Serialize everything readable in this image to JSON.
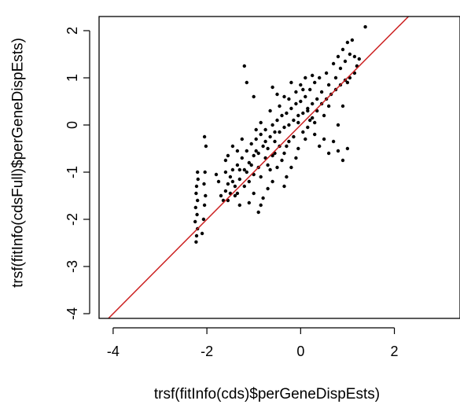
{
  "chart_data": {
    "type": "scatter",
    "title": "",
    "xlabel": "trsf(fitInfo(cds)$perGeneDispEsts)",
    "ylabel": "trsf(fitInfo(cdsFull)$perGeneDispEsts)",
    "xlim": [
      -4.3,
      3.4
    ],
    "ylim": [
      -4.1,
      2.3
    ],
    "xticks": [
      -4,
      -2,
      0,
      2
    ],
    "yticks": [
      -4,
      -3,
      -2,
      -1,
      0,
      1,
      2
    ],
    "x_tick_labels": [
      "-4",
      "-2",
      "0",
      "2"
    ],
    "y_tick_labels": [
      "-4",
      "-3",
      "-2",
      "-1",
      "0",
      "1",
      "2"
    ],
    "grid": false,
    "point_color": "#000000",
    "reference_line": {
      "type": "identity",
      "slope": 1,
      "intercept": 0,
      "color": "#cc2222"
    },
    "series": [
      {
        "values": [
          [
            -2.23,
            -2.48
          ],
          [
            -2.22,
            -2.35
          ],
          [
            -2.2,
            -2.2
          ],
          [
            -2.25,
            -2.05
          ],
          [
            -2.21,
            -1.9
          ],
          [
            -2.24,
            -1.75
          ],
          [
            -2.2,
            -1.6
          ],
          [
            -2.23,
            -1.45
          ],
          [
            -2.22,
            -1.3
          ],
          [
            -2.19,
            -1.15
          ],
          [
            -2.2,
            -1.0
          ],
          [
            -2.1,
            -2.3
          ],
          [
            -2.07,
            -2.0
          ],
          [
            -2.05,
            -1.7
          ],
          [
            -2.03,
            -1.5
          ],
          [
            -2.06,
            -1.25
          ],
          [
            -2.04,
            -1.0
          ],
          [
            -2.02,
            -0.45
          ],
          [
            -2.05,
            -0.25
          ],
          [
            -1.65,
            -1.6
          ],
          [
            -1.6,
            -1.4
          ],
          [
            -1.55,
            -1.25
          ],
          [
            -1.5,
            -1.1
          ],
          [
            -1.45,
            -0.95
          ],
          [
            -1.6,
            -1.0
          ],
          [
            -1.4,
            -1.3
          ],
          [
            -1.35,
            -0.85
          ],
          [
            -1.3,
            -1.15
          ],
          [
            -1.25,
            -0.7
          ],
          [
            -1.55,
            -0.65
          ],
          [
            -1.45,
            -0.45
          ],
          [
            -1.2,
            -0.95
          ],
          [
            -1.15,
            -0.55
          ],
          [
            -1.1,
            -0.8
          ],
          [
            -1.05,
            -0.4
          ],
          [
            -1.0,
            -0.65
          ],
          [
            -0.95,
            -0.3
          ],
          [
            -0.9,
            -0.6
          ],
          [
            -0.85,
            -0.2
          ],
          [
            -0.8,
            -0.45
          ],
          [
            -0.75,
            -0.1
          ],
          [
            -0.7,
            -0.5
          ],
          [
            -0.65,
            -0.25
          ],
          [
            -0.6,
            0.0
          ],
          [
            -0.55,
            -0.35
          ],
          [
            -0.5,
            0.1
          ],
          [
            -0.45,
            -0.15
          ],
          [
            -0.4,
            0.2
          ],
          [
            -0.35,
            -0.05
          ],
          [
            -0.3,
            0.25
          ],
          [
            -0.25,
            0.0
          ],
          [
            -0.2,
            0.35
          ],
          [
            -0.15,
            0.1
          ],
          [
            -0.1,
            0.45
          ],
          [
            -0.05,
            0.2
          ],
          [
            0.0,
            0.5
          ],
          [
            0.05,
            0.25
          ],
          [
            0.1,
            0.6
          ],
          [
            0.15,
            0.35
          ],
          [
            0.2,
            0.75
          ],
          [
            0.25,
            0.45
          ],
          [
            0.3,
            0.9
          ],
          [
            0.35,
            0.55
          ],
          [
            0.4,
            1.0
          ],
          [
            -1.2,
            1.25
          ],
          [
            -1.15,
            0.9
          ],
          [
            -1.0,
            0.6
          ],
          [
            -0.6,
            0.8
          ],
          [
            -0.5,
            0.65
          ],
          [
            -0.35,
            0.6
          ],
          [
            -0.2,
            0.9
          ],
          [
            0.0,
            0.85
          ],
          [
            0.1,
            1.0
          ],
          [
            0.25,
            1.05
          ],
          [
            0.45,
            0.7
          ],
          [
            0.55,
            1.1
          ],
          [
            0.6,
            0.85
          ],
          [
            0.7,
            1.3
          ],
          [
            0.75,
            1.0
          ],
          [
            0.8,
            1.45
          ],
          [
            0.85,
            1.2
          ],
          [
            0.9,
            1.6
          ],
          [
            0.95,
            1.35
          ],
          [
            1.0,
            1.75
          ],
          [
            1.05,
            1.5
          ],
          [
            1.1,
            1.8
          ],
          [
            1.15,
            1.45
          ],
          [
            1.2,
            1.25
          ],
          [
            1.25,
            1.4
          ],
          [
            1.38,
            2.08
          ],
          [
            1.0,
            0.9
          ],
          [
            0.9,
            0.4
          ],
          [
            0.8,
            0.0
          ],
          [
            0.7,
            -0.35
          ],
          [
            0.6,
            -0.6
          ],
          [
            0.8,
            -0.55
          ],
          [
            0.9,
            -0.75
          ],
          [
            1.0,
            -0.5
          ],
          [
            0.5,
            -0.3
          ],
          [
            0.3,
            -0.2
          ],
          [
            0.2,
            0.1
          ],
          [
            -0.1,
            -0.7
          ],
          [
            -0.2,
            -0.9
          ],
          [
            -0.3,
            -1.1
          ],
          [
            -0.35,
            -1.3
          ],
          [
            -0.6,
            -1.2
          ],
          [
            -0.7,
            -1.35
          ],
          [
            -0.8,
            -1.55
          ],
          [
            -0.85,
            -1.7
          ],
          [
            -0.9,
            -1.85
          ],
          [
            -1.1,
            -1.65
          ],
          [
            -1.3,
            -1.7
          ],
          [
            -1.4,
            -1.5
          ],
          [
            -1.7,
            -1.5
          ],
          [
            -1.75,
            -1.2
          ],
          [
            -1.8,
            -1.05
          ],
          [
            -1.6,
            -0.75
          ],
          [
            -0.3,
            -0.45
          ],
          [
            -0.4,
            -0.75
          ],
          [
            -0.5,
            -0.9
          ],
          [
            -0.6,
            -0.65
          ],
          [
            -0.7,
            -0.85
          ],
          [
            -0.75,
            -0.35
          ],
          [
            -0.9,
            -0.9
          ],
          [
            -1.0,
            -1.05
          ],
          [
            -1.1,
            -1.2
          ],
          [
            -1.2,
            -1.3
          ],
          [
            -1.3,
            -0.95
          ],
          [
            -1.35,
            -0.55
          ],
          [
            -1.25,
            -0.3
          ],
          [
            -0.95,
            -0.1
          ],
          [
            -0.85,
            0.05
          ],
          [
            -0.65,
            0.3
          ],
          [
            -0.45,
            0.4
          ],
          [
            -0.25,
            0.55
          ],
          [
            -0.1,
            0.7
          ],
          [
            0.05,
            0.75
          ],
          [
            0.15,
            -0.05
          ],
          [
            0.25,
            0.15
          ],
          [
            0.35,
            0.3
          ],
          [
            0.45,
            0.45
          ],
          [
            0.55,
            0.55
          ],
          [
            0.65,
            0.65
          ],
          [
            0.75,
            0.75
          ],
          [
            0.85,
            0.85
          ],
          [
            0.95,
            0.95
          ],
          [
            1.05,
            1.0
          ],
          [
            1.15,
            1.1
          ],
          [
            0.4,
            -0.45
          ],
          [
            0.1,
            -0.3
          ],
          [
            -0.05,
            -0.5
          ],
          [
            -0.15,
            -0.25
          ],
          [
            -0.35,
            -0.6
          ],
          [
            -0.55,
            -0.6
          ],
          [
            -0.65,
            -0.95
          ],
          [
            -0.85,
            -1.1
          ],
          [
            -1.05,
            -0.85
          ],
          [
            -1.15,
            -1.0
          ],
          [
            -1.45,
            -1.2
          ],
          [
            -1.5,
            -1.45
          ],
          [
            -1.55,
            -1.6
          ],
          [
            -1.35,
            -1.45
          ],
          [
            -1.0,
            -1.45
          ],
          [
            -0.95,
            -0.55
          ],
          [
            -0.75,
            -0.7
          ],
          [
            -0.55,
            -0.15
          ],
          [
            -0.45,
            -0.45
          ],
          [
            -0.25,
            -0.35
          ],
          [
            -0.05,
            0.05
          ],
          [
            0.05,
            -0.15
          ],
          [
            0.15,
            0.3
          ],
          [
            0.3,
            0.05
          ],
          [
            0.5,
            0.2
          ],
          [
            0.6,
            0.4
          ]
        ]
      }
    ]
  }
}
